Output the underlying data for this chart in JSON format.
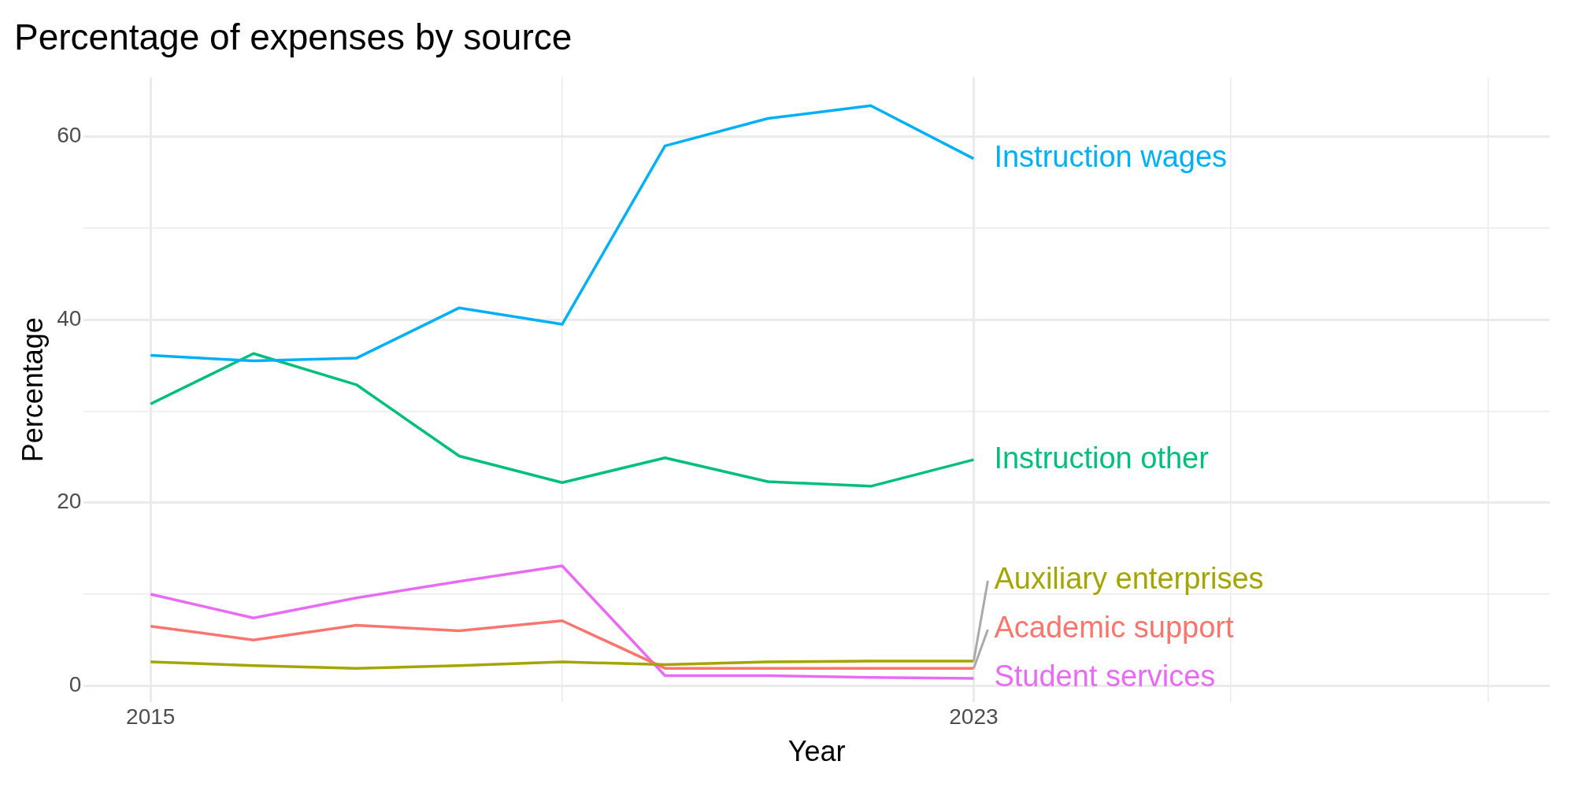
{
  "chart_data": {
    "type": "line",
    "title": "Percentage of expenses by source",
    "xlabel": "Year",
    "ylabel": "Percentage",
    "x": [
      2015,
      2016,
      2017,
      2018,
      2019,
      2020,
      2021,
      2022,
      2023
    ],
    "xlim": [
      2014.35,
      2028.6
    ],
    "xticks": [
      2015,
      {
        "value": 2019,
        "label": null
      },
      2023,
      {
        "value": 2025.5,
        "label": null
      },
      {
        "value": 2028,
        "label": null
      }
    ],
    "ylim": [
      -1.8,
      66.5
    ],
    "yticks": [
      0,
      {
        "value": 10,
        "label": null
      },
      20,
      {
        "value": 30,
        "label": null
      },
      40,
      {
        "value": 50,
        "label": null
      },
      60
    ],
    "grid": true,
    "legend": false,
    "marker": "none",
    "line_style": "solid",
    "series": [
      {
        "name": "Instruction wages",
        "color": "#00b0f6",
        "values": [
          36.1,
          35.5,
          35.8,
          41.3,
          39.5,
          59.0,
          62.0,
          63.4,
          57.6
        ]
      },
      {
        "name": "Instruction other",
        "color": "#00bf7d",
        "values": [
          30.8,
          36.3,
          32.9,
          25.1,
          22.2,
          24.9,
          22.3,
          21.8,
          24.7
        ]
      },
      {
        "name": "Auxiliary enterprises",
        "color": "#a3a500",
        "values": [
          2.6,
          2.2,
          1.9,
          2.2,
          2.6,
          2.3,
          2.6,
          2.7,
          2.7
        ]
      },
      {
        "name": "Academic support",
        "color": "#f8766d",
        "values": [
          6.5,
          5.0,
          6.6,
          6.0,
          7.1,
          1.9,
          1.9,
          1.9,
          1.9
        ]
      },
      {
        "name": "Student services",
        "color": "#e76bf3",
        "values": [
          10.0,
          7.4,
          9.6,
          11.4,
          13.1,
          1.1,
          1.1,
          0.9,
          0.8
        ]
      }
    ]
  }
}
